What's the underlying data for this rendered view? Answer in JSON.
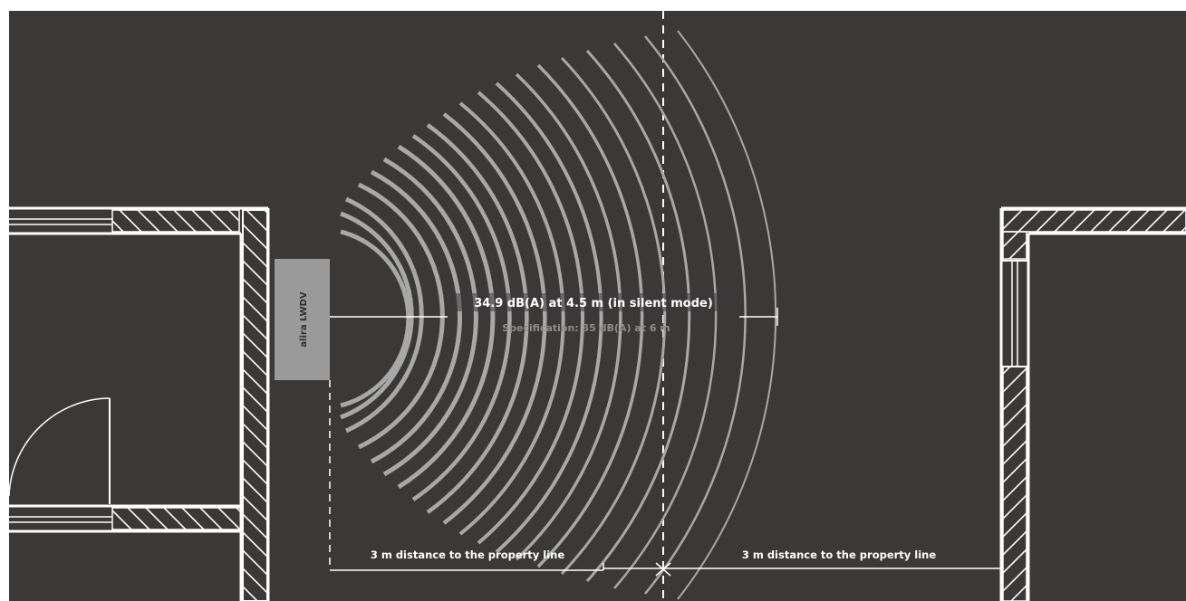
{
  "unit_label": "alira LWDV",
  "measurement": {
    "main": "34.9 dB(A) at 4.5 m (in silent mode)",
    "specification": "Specification: 35 dB(A) at 6 m"
  },
  "distance_labels": {
    "left": "3 m distance to the property line",
    "right": "3 m distance to the property line"
  },
  "colors": {
    "background": "#3a3938",
    "drawing_lines": "#ffffff",
    "sound_waves": "#a8a8a8",
    "unit_fill": "#9a9a9a",
    "spec_text": "#8c8c8c"
  }
}
